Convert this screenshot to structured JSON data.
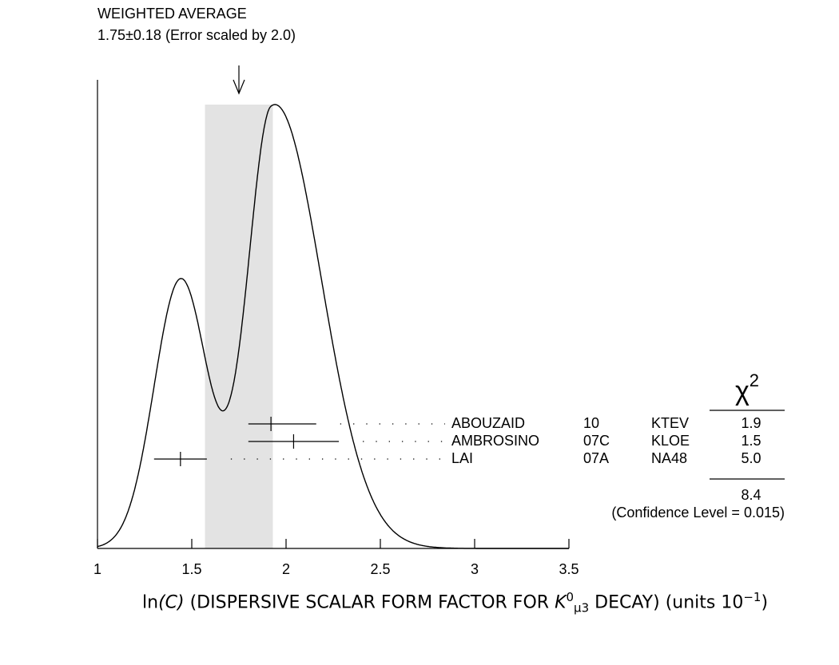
{
  "chart_data": {
    "type": "ideogram",
    "title": "WEIGHTED AVERAGE",
    "average_label": "1.75±0.18 (Error scaled by 2.0)",
    "weighted_average": {
      "value": 1.75,
      "error": 0.18
    },
    "xlim": [
      1,
      3.5
    ],
    "xticks": [
      1,
      1.5,
      2,
      2.5,
      3,
      3.5
    ],
    "xlabel": [
      {
        "text": "ln",
        "style": "plain"
      },
      {
        "text": "(C)",
        "style": "italic"
      },
      {
        "text": " (DISPERSIVE SCALAR FORM FACTOR FOR ",
        "style": "plain"
      },
      {
        "text": "K",
        "style": "italic"
      },
      {
        "text": "0",
        "style": "sup"
      },
      {
        "text": "μ3",
        "style": "sub"
      },
      {
        "text": " DECAY) (units 10",
        "style": "plain"
      },
      {
        "text": "−1",
        "style": "sup"
      },
      {
        "text": ")",
        "style": "plain"
      }
    ],
    "chi2_header": {
      "symbol": "χ",
      "power": "2"
    },
    "measurements": [
      {
        "name": "ABOUZAID",
        "year": "10",
        "experiment": "KTEV",
        "value": 1.92,
        "err_minus": 0.12,
        "err_plus": 0.24,
        "chi2": 1.9
      },
      {
        "name": "AMBROSINO",
        "year": "07C",
        "experiment": "KLOE",
        "value": 2.04,
        "err_minus": 0.24,
        "err_plus": 0.24,
        "chi2": 1.5
      },
      {
        "name": "LAI",
        "year": "07A",
        "experiment": "NA48",
        "value": 1.44,
        "err_minus": 0.14,
        "err_plus": 0.14,
        "chi2": 5,
        "chi2_label": "5.0"
      }
    ],
    "chi2_sum": 8.4,
    "confidence_label": "(Confidence Level = 0.015)"
  }
}
